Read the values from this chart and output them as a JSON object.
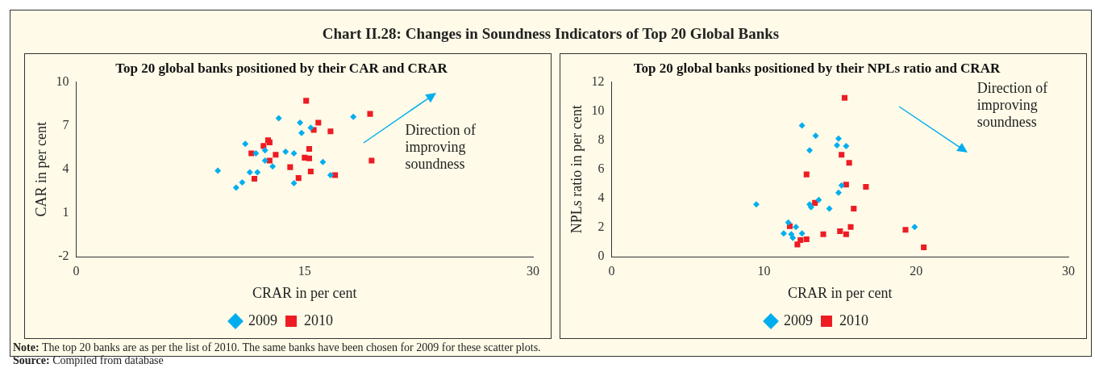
{
  "chart_data": [
    {
      "type": "other",
      "title": "Chart II.28: Changes in Soundness Indicators of Top 20 Global Banks",
      "annotations": [
        "Note: The top 20 banks are as per the list of 2010. The same banks have been chosen for 2009 for these scatter plots.",
        "Source: Compiled from database"
      ]
    },
    {
      "type": "scatter",
      "title": "Top 20 global banks positioned by their CAR and CRAR",
      "xlabel": "CRAR in per cent",
      "ylabel": "CAR in per cent",
      "xlim": [
        0,
        30
      ],
      "xticks": [
        0,
        15,
        30
      ],
      "ylim": [
        -2,
        10
      ],
      "yticks": [
        -2,
        1,
        4,
        7,
        10
      ],
      "legend": "bottom",
      "annotations": [
        "Direction of improving soundness"
      ],
      "series": [
        {
          "name": "2009",
          "color": "#00aeef",
          "marker": "diamond",
          "x": [
            13.3,
            14.7,
            18.2,
            15.4,
            14.8,
            11.1,
            12.4,
            11.8,
            13.75,
            14.3,
            12.4,
            12.9,
            16.2,
            9.3,
            11.4,
            11.9,
            16.7,
            10.9,
            14.3,
            10.5
          ],
          "values": [
            7.5,
            7.2,
            7.6,
            6.85,
            6.5,
            5.75,
            5.3,
            5.1,
            5.2,
            5.1,
            4.6,
            4.2,
            4.5,
            3.9,
            3.8,
            3.8,
            3.6,
            3.1,
            3.05,
            2.75
          ]
        },
        {
          "name": "2010",
          "color": "#ed1c24",
          "marker": "square",
          "x": [
            15.1,
            19.3,
            15.9,
            15.6,
            16.7,
            12.6,
            12.7,
            12.3,
            11.5,
            13.1,
            15.3,
            12.7,
            15.0,
            15.3,
            19.4,
            14.05,
            15.4,
            17.0,
            11.7,
            14.6
          ],
          "values": [
            8.7,
            7.8,
            7.2,
            6.7,
            6.6,
            6.0,
            5.85,
            5.6,
            5.1,
            5.0,
            5.4,
            4.6,
            4.8,
            4.75,
            4.6,
            4.15,
            3.85,
            3.6,
            3.35,
            3.4
          ]
        }
      ]
    },
    {
      "type": "scatter",
      "title": "Top 20 global banks positioned by their NPLs ratio and CRAR",
      "xlabel": "CRAR in per cent",
      "ylabel": "NPLs ratio in per cent",
      "xlim": [
        0,
        30
      ],
      "xticks": [
        0,
        10,
        20,
        30
      ],
      "ylim": [
        0,
        12
      ],
      "yticks": [
        0,
        2,
        4,
        6,
        8,
        10,
        12
      ],
      "legend": "bottom",
      "annotations": [
        "Direction of improving soundness"
      ],
      "series": [
        {
          "name": "2009",
          "color": "#00aeef",
          "marker": "diamond",
          "x": [
            12.5,
            13.4,
            14.9,
            14.8,
            15.4,
            13.0,
            15.1,
            14.9,
            13.6,
            9.5,
            13.0,
            13.1,
            14.3,
            11.6,
            12.1,
            11.3,
            11.8,
            12.5,
            11.9,
            19.9
          ],
          "values": [
            9.0,
            8.3,
            8.1,
            7.65,
            7.6,
            7.3,
            4.9,
            4.4,
            3.9,
            3.6,
            3.6,
            3.4,
            3.3,
            2.35,
            2.05,
            1.6,
            1.55,
            1.6,
            1.3,
            2.05
          ]
        },
        {
          "name": "2010",
          "color": "#ed1c24",
          "marker": "square",
          "x": [
            15.3,
            15.1,
            15.6,
            12.8,
            15.4,
            16.7,
            13.35,
            15.9,
            11.7,
            15.7,
            15.0,
            15.4,
            13.9,
            12.4,
            12.8,
            12.2,
            19.3,
            20.5
          ],
          "values": [
            10.9,
            7.0,
            6.45,
            5.65,
            4.95,
            4.8,
            3.7,
            3.3,
            2.1,
            2.05,
            1.75,
            1.55,
            1.55,
            1.15,
            1.2,
            0.85,
            1.85,
            0.65
          ]
        }
      ]
    }
  ]
}
